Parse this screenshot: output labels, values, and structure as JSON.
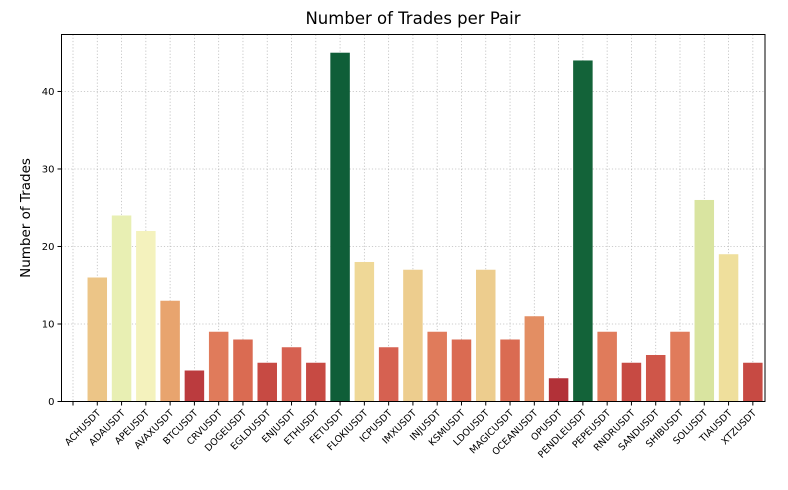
{
  "chart_data": {
    "type": "bar",
    "title": "Number of Trades per Pair",
    "xlabel": "",
    "ylabel": "Number of Trades",
    "ylim": [
      0,
      47.35
    ],
    "yticks": [
      0,
      10,
      20,
      30,
      40
    ],
    "grid": true,
    "grid_style": "dotted",
    "legend": null,
    "xtick_rotation": 45,
    "categories": [
      "",
      "ACHUSDT",
      "ADAUSDT",
      "APEUSDT",
      "AVAXUSDT",
      "BTCUSDT",
      "CRVUSDT",
      "DOGEUSDT",
      "EGLDUSDT",
      "ENJUSDT",
      "ETHUSDT",
      "FETUSDT",
      "FLOKIUSDT",
      "ICPUSDT",
      "IMXUSDT",
      "INJUSDT",
      "KSMUSDT",
      "LDOUSDT",
      "MAGICUSDT",
      "OCEANUSDT",
      "OPUSDT",
      "PENDLEUSDT",
      "PEPEUSDT",
      "RNDRUSDT",
      "SANDUSDT",
      "SHIBUSDT",
      "SOLUSDT",
      "TIAUSDT",
      "XTZUSDT"
    ],
    "values": [
      null,
      16,
      24,
      22,
      13,
      4,
      9,
      8,
      5,
      7,
      5,
      45,
      18,
      7,
      17,
      9,
      8,
      17,
      8,
      11,
      3,
      44,
      9,
      5,
      6,
      9,
      26,
      19,
      5
    ],
    "colors": [
      null,
      "#ecc587",
      "#e8efb3",
      "#f4f2bd",
      "#e8a46e",
      "#bb3b3e",
      "#e07b5b",
      "#da6b52",
      "#c74a43",
      "#d66151",
      "#c74a43",
      "#0f5e38",
      "#efd897",
      "#d66151",
      "#edcd8e",
      "#e07b5b",
      "#da6b52",
      "#edcd8e",
      "#da6b52",
      "#e38e63",
      "#b23138",
      "#136339",
      "#e07b5b",
      "#c74a43",
      "#cf5649",
      "#e07b5b",
      "#d9e4a0",
      "#efdf9c",
      "#c74a43"
    ],
    "colormap": "RdYlGn"
  }
}
